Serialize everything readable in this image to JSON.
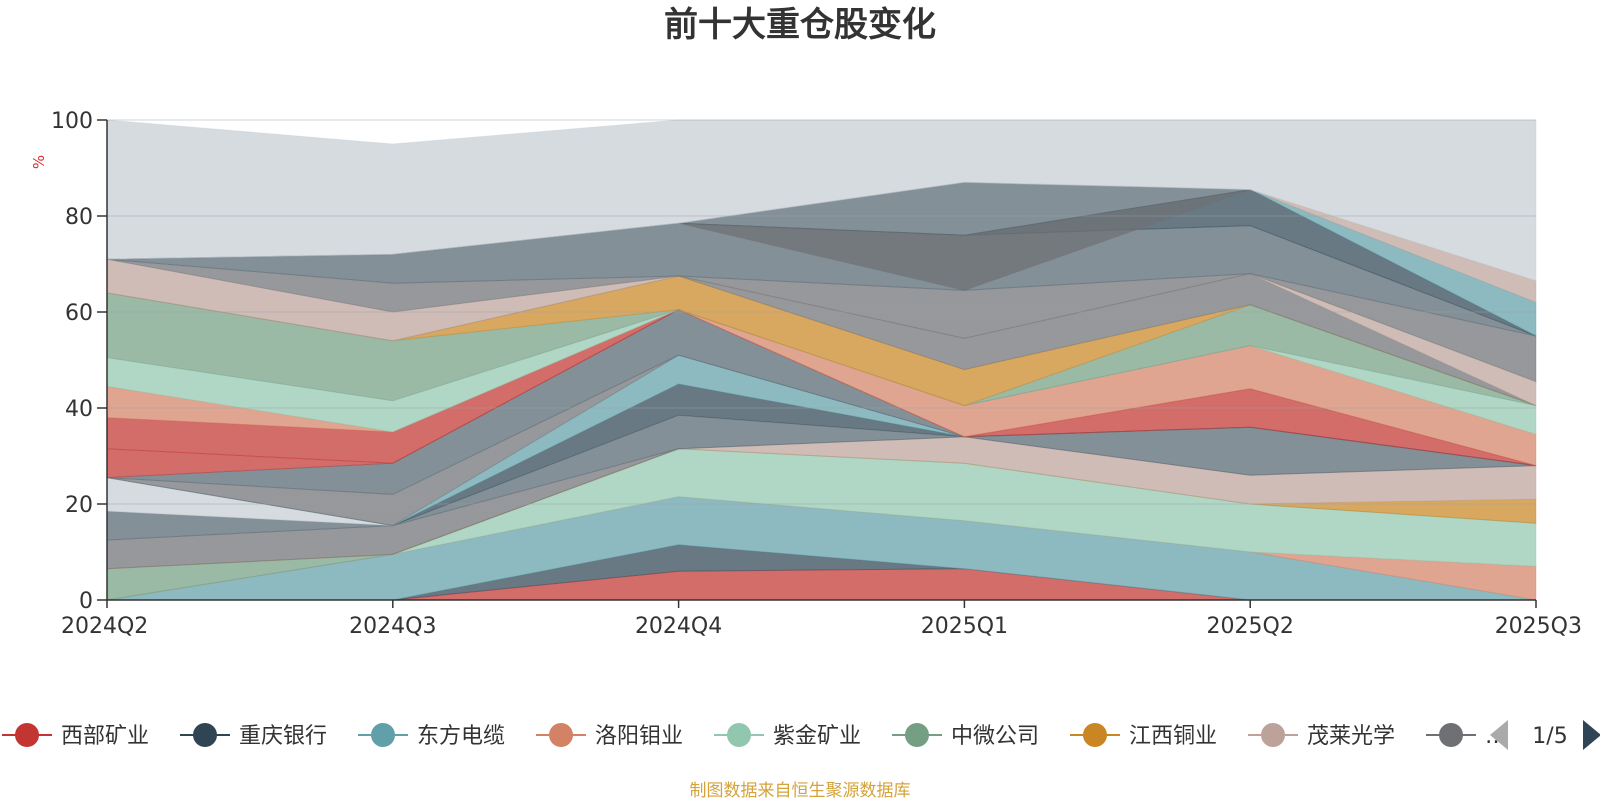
{
  "chart_data": {
    "type": "area",
    "title": "前十大重仓股变化",
    "unit_label": "%",
    "ylim": [
      0,
      100
    ],
    "y_ticks": [
      0,
      20,
      40,
      60,
      80,
      100
    ],
    "categories": [
      "2024Q2",
      "2024Q3",
      "2024Q4",
      "2025Q1",
      "2025Q2",
      "2025Q3"
    ],
    "grid": true,
    "legend_position": "bottom",
    "legend": [
      {
        "name": "西部矿业",
        "color": "#c23531"
      },
      {
        "name": "重庆银行",
        "color": "#2f4554"
      },
      {
        "name": "东方电缆",
        "color": "#61a0a8"
      },
      {
        "name": "洛阳钼业",
        "color": "#d48265"
      },
      {
        "name": "紫金矿业",
        "color": "#91c7ae"
      },
      {
        "name": "中微公司",
        "color": "#749f83"
      },
      {
        "name": "江西铜业",
        "color": "#ca8622"
      },
      {
        "name": "茂莱光学",
        "color": "#bda29a"
      },
      {
        "name": "…",
        "color": "#6e7074"
      }
    ],
    "pagination": "1/5",
    "bands": [
      {
        "color": "#c23531",
        "lower": [
          0,
          0,
          0,
          0,
          0,
          0
        ],
        "upper": [
          0,
          0,
          6,
          6.5,
          0,
          0
        ]
      },
      {
        "color": "#2f4554",
        "lower": [
          0,
          0,
          6,
          6.5,
          0,
          0
        ],
        "upper": [
          0,
          0,
          11.5,
          6.5,
          0,
          0
        ]
      },
      {
        "color": "#61a0a8",
        "lower": [
          0,
          0,
          11.5,
          6.5,
          0,
          0
        ],
        "upper": [
          0,
          9.5,
          21.5,
          16.5,
          10,
          0
        ]
      },
      {
        "color": "#d48265",
        "lower": [
          0,
          9.5,
          21.5,
          16.5,
          10,
          0
        ],
        "upper": [
          0,
          9.5,
          21.5,
          16.5,
          10,
          7
        ]
      },
      {
        "color": "#91c7ae",
        "lower": [
          0,
          9.5,
          21.5,
          16.5,
          10,
          7
        ],
        "upper": [
          0,
          9.5,
          31.5,
          28.5,
          20,
          16
        ]
      },
      {
        "color": "#749f83",
        "lower": [
          0,
          9.5,
          31.5,
          28.5,
          20,
          16
        ],
        "upper": [
          6.5,
          9.5,
          31.5,
          28.5,
          20,
          16
        ]
      },
      {
        "color": "#ca8622",
        "lower": [
          6.5,
          9.5,
          31.5,
          28.5,
          20,
          16
        ],
        "upper": [
          6.5,
          9.5,
          31.5,
          28.5,
          20,
          21
        ]
      },
      {
        "color": "#bda29a",
        "lower": [
          6.5,
          9.5,
          31.5,
          28.5,
          20,
          21
        ],
        "upper": [
          6.5,
          9.5,
          31.5,
          34,
          26,
          28
        ]
      },
      {
        "color": "#6e7074",
        "lower": [
          6.5,
          9.5,
          31.5,
          34,
          26,
          28
        ],
        "upper": [
          12.5,
          15.5,
          31.5,
          34,
          26,
          28
        ]
      },
      {
        "color": "#546570",
        "lower": [
          12.5,
          15.5,
          31.5,
          34,
          26,
          28
        ],
        "upper": [
          18.5,
          15.5,
          38.5,
          34,
          36,
          28
        ]
      },
      {
        "color": "#c4ccd3",
        "lower": [
          18.5,
          15.5,
          38.5,
          34,
          36,
          28
        ],
        "upper": [
          25.5,
          15.5,
          38.5,
          34,
          36,
          28
        ]
      },
      {
        "color": "#2f4554",
        "lower": [
          25.5,
          15.5,
          38.5,
          34,
          36,
          28
        ],
        "upper": [
          25.5,
          15.5,
          45,
          34,
          36,
          28
        ]
      },
      {
        "color": "#61a0a8",
        "lower": [
          25.5,
          15.5,
          45,
          34,
          36,
          28
        ],
        "upper": [
          25.5,
          15.5,
          51,
          34,
          36,
          28
        ]
      },
      {
        "color": "#6e7074",
        "lower": [
          25.5,
          15.5,
          51,
          34,
          36,
          28
        ],
        "upper": [
          25.5,
          22,
          51,
          34,
          36,
          28
        ]
      },
      {
        "color": "#546570",
        "lower": [
          25.5,
          22,
          51,
          34,
          36,
          28
        ],
        "upper": [
          25.5,
          28.5,
          60.5,
          34,
          36,
          28
        ]
      },
      {
        "color": "#c23531",
        "lower": [
          25.5,
          28.5,
          60.5,
          34,
          36,
          28
        ],
        "upper": [
          31.5,
          28.5,
          60.5,
          34,
          44,
          28
        ]
      },
      {
        "color": "#c23531",
        "lower": [
          31.5,
          28.5,
          60.5,
          34,
          44,
          28
        ],
        "upper": [
          38,
          35,
          60.5,
          34,
          44,
          28
        ]
      },
      {
        "color": "#d48265",
        "lower": [
          38,
          35,
          60.5,
          34,
          44,
          28
        ],
        "upper": [
          44.5,
          35,
          60.5,
          40.5,
          53,
          34.5
        ]
      },
      {
        "color": "#91c7ae",
        "lower": [
          44.5,
          35,
          60.5,
          40.5,
          53,
          34.5
        ],
        "upper": [
          50.5,
          41.5,
          60.5,
          40.5,
          53,
          40.5
        ]
      },
      {
        "color": "#749f83",
        "lower": [
          50.5,
          41.5,
          60.5,
          40.5,
          53,
          40.5
        ],
        "upper": [
          64,
          54,
          60.5,
          40.5,
          61.5,
          40.5
        ]
      },
      {
        "color": "#ca8622",
        "lower": [
          64,
          54,
          60.5,
          40.5,
          61.5,
          40.5
        ],
        "upper": [
          64,
          54,
          67.5,
          48,
          61.5,
          40.5
        ]
      },
      {
        "color": "#6e7074",
        "lower": [
          64,
          54,
          67.5,
          48,
          61.5,
          40.5
        ],
        "upper": [
          64,
          54,
          67.5,
          54.5,
          68,
          40.5
        ]
      },
      {
        "color": "#bda29a",
        "lower": [
          64,
          54,
          67.5,
          54.5,
          68,
          40.5
        ],
        "upper": [
          71,
          60,
          67.5,
          54.5,
          68,
          45.5
        ]
      },
      {
        "color": "#6e7074",
        "lower": [
          71,
          60,
          67.5,
          54.5,
          68,
          45.5
        ],
        "upper": [
          71,
          66,
          67.5,
          64.5,
          68,
          55
        ]
      },
      {
        "color": "#546570",
        "lower": [
          71,
          66,
          67.5,
          64.5,
          68,
          55
        ],
        "upper": [
          71,
          72,
          78.5,
          76,
          78,
          55
        ]
      },
      {
        "color": "#2f4554",
        "lower": [
          71,
          72,
          78.5,
          76,
          78,
          55
        ],
        "upper": [
          71,
          72,
          78.5,
          76,
          85.5,
          55
        ]
      },
      {
        "color": "#6e7074",
        "lower": [
          71,
          72,
          78.5,
          64.5,
          85.5,
          55
        ],
        "upper": [
          71,
          72,
          78.5,
          76,
          85.5,
          55
        ]
      },
      {
        "color": "#546570",
        "lower": [
          71,
          72,
          78.5,
          76,
          85.5,
          55
        ],
        "upper": [
          71,
          72,
          78.5,
          87,
          85.5,
          55
        ]
      },
      {
        "color": "#61a0a8",
        "lower": [
          71,
          72,
          78.5,
          87,
          85.5,
          55
        ],
        "upper": [
          71,
          72,
          78.5,
          87,
          85.5,
          62
        ]
      },
      {
        "color": "#bda29a",
        "lower": [
          71,
          72,
          78.5,
          87,
          85.5,
          62
        ],
        "upper": [
          71,
          72,
          78.5,
          87,
          85.5,
          66.5
        ]
      },
      {
        "color": "#c4ccd3",
        "lower": [
          71,
          72,
          78.5,
          87,
          85.5,
          66.5
        ],
        "upper": [
          100,
          95,
          100,
          100,
          100,
          100
        ]
      }
    ]
  },
  "footer": {
    "source": "制图数据来自恒生聚源数据库"
  }
}
